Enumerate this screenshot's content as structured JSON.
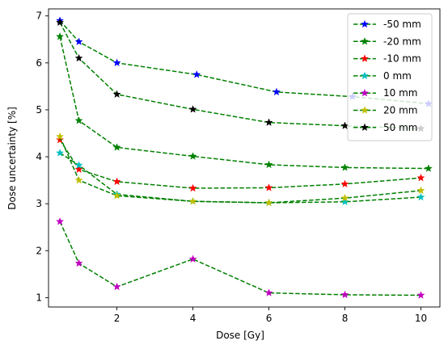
{
  "chart_data": {
    "type": "line",
    "xlabel": "Dose [Gy]",
    "ylabel": "Dose uncertainty [%]",
    "xlim": [
      0.2,
      10.5
    ],
    "ylim": [
      0.8,
      7.15
    ],
    "xticks": [
      2,
      4,
      6,
      8,
      10
    ],
    "yticks": [
      1,
      2,
      3,
      4,
      5,
      6,
      7
    ],
    "grid": false,
    "legend_position": "top-right",
    "line_color": "#008000",
    "line_style": "dashed",
    "marker": "star",
    "series": [
      {
        "name": "-50 mm",
        "color": "#0000ff",
        "points": [
          [
            0.5,
            6.9
          ],
          [
            1.0,
            6.45
          ],
          [
            2.0,
            6.0
          ],
          [
            4.1,
            5.75
          ],
          [
            6.2,
            5.38
          ],
          [
            8.2,
            5.28
          ],
          [
            10.2,
            5.13
          ]
        ]
      },
      {
        "name": "-20 mm",
        "color": "#008000",
        "points": [
          [
            0.5,
            6.56
          ],
          [
            1.0,
            4.77
          ],
          [
            2.0,
            4.2
          ],
          [
            4.0,
            4.01
          ],
          [
            6.0,
            3.83
          ],
          [
            8.0,
            3.77
          ],
          [
            10.2,
            3.75
          ]
        ]
      },
      {
        "name": "-10 mm",
        "color": "#ff0000",
        "points": [
          [
            0.5,
            4.36
          ],
          [
            1.0,
            3.73
          ],
          [
            2.0,
            3.47
          ],
          [
            4.0,
            3.33
          ],
          [
            6.0,
            3.34
          ],
          [
            8.0,
            3.42
          ],
          [
            10.0,
            3.55
          ]
        ]
      },
      {
        "name": "0 mm",
        "color": "#00bfbf",
        "points": [
          [
            0.5,
            4.08
          ],
          [
            1.0,
            3.82
          ],
          [
            2.0,
            3.2
          ],
          [
            4.0,
            3.05
          ],
          [
            6.0,
            3.02
          ],
          [
            8.0,
            3.04
          ],
          [
            10.0,
            3.14
          ]
        ]
      },
      {
        "name": "10 mm",
        "color": "#bf00bf",
        "points": [
          [
            0.5,
            2.62
          ],
          [
            1.0,
            1.73
          ],
          [
            2.0,
            1.23
          ],
          [
            4.0,
            1.82
          ],
          [
            6.0,
            1.1
          ],
          [
            8.0,
            1.06
          ],
          [
            10.0,
            1.05
          ]
        ]
      },
      {
        "name": "20 mm",
        "color": "#bfbf00",
        "points": [
          [
            0.5,
            4.43
          ],
          [
            1.0,
            3.5
          ],
          [
            2.0,
            3.17
          ],
          [
            4.0,
            3.05
          ],
          [
            6.0,
            3.02
          ],
          [
            8.0,
            3.12
          ],
          [
            10.0,
            3.28
          ]
        ]
      },
      {
        "name": "50 mm",
        "color": "#000000",
        "points": [
          [
            0.5,
            6.86
          ],
          [
            1.0,
            6.1
          ],
          [
            2.0,
            5.33
          ],
          [
            4.0,
            5.01
          ],
          [
            6.0,
            4.73
          ],
          [
            8.0,
            4.66
          ],
          [
            10.0,
            4.6
          ]
        ]
      }
    ]
  }
}
